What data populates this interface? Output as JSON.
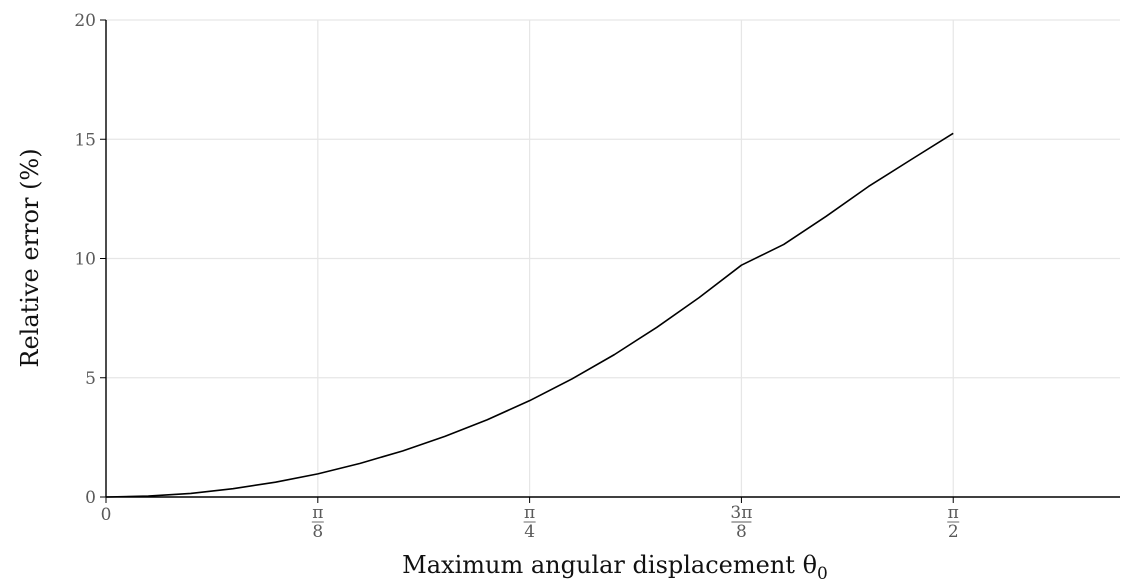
{
  "chart_data": {
    "type": "line",
    "title": "",
    "xlabel": "Maximum angular displacement θ",
    "xlabel_subscript": "0",
    "ylabel": "Relative error (%)",
    "xlim": [
      0,
      1.88
    ],
    "ylim": [
      0,
      20
    ],
    "grid": true,
    "x_ticks": [
      {
        "value": 0,
        "label": "0"
      },
      {
        "value": 0.3927,
        "label_num": "π",
        "label_den": "8"
      },
      {
        "value": 0.7854,
        "label_num": "π",
        "label_den": "4"
      },
      {
        "value": 1.1781,
        "label_num": "3π",
        "label_den": "8"
      },
      {
        "value": 1.5708,
        "label_num": "π",
        "label_den": "2"
      }
    ],
    "y_ticks": [
      {
        "value": 0,
        "label": "0"
      },
      {
        "value": 5,
        "label": "5"
      },
      {
        "value": 10,
        "label": "10"
      },
      {
        "value": 15,
        "label": "15"
      },
      {
        "value": 20,
        "label": "20"
      }
    ],
    "series": [
      {
        "color": "#000000",
        "x": [
          0,
          0.0785,
          0.1571,
          0.2356,
          0.3142,
          0.3927,
          0.4712,
          0.5498,
          0.6283,
          0.7069,
          0.7854,
          0.8639,
          0.9425,
          1.021,
          1.0996,
          1.1781,
          1.2566,
          1.3352,
          1.4137,
          1.4923,
          1.5708
        ],
        "y": [
          0,
          0.04,
          0.15,
          0.35,
          0.62,
          0.97,
          1.41,
          1.93,
          2.54,
          3.24,
          4.04,
          4.95,
          5.97,
          7.11,
          8.36,
          9.72,
          10.59,
          11.77,
          13.02,
          14.14,
          15.25
        ]
      }
    ]
  }
}
